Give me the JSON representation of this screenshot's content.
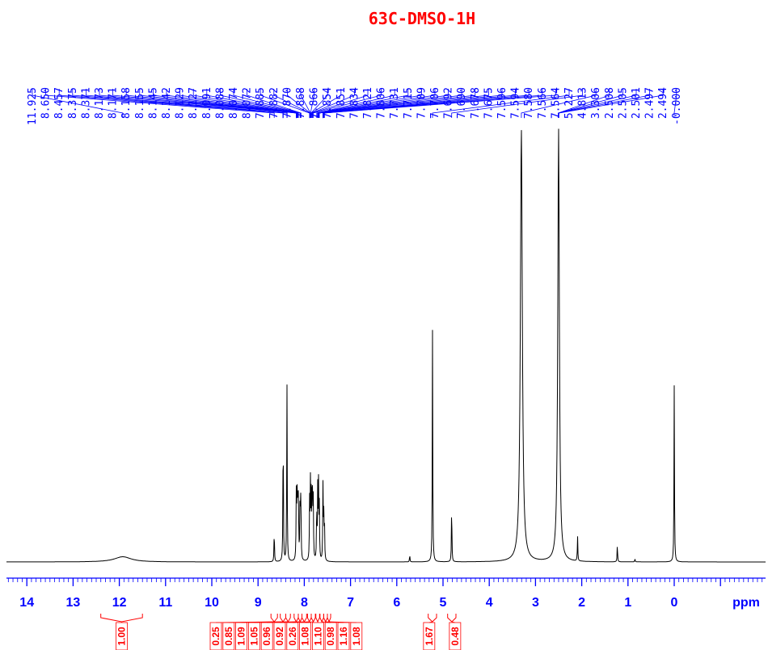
{
  "chart_data": {
    "type": "line",
    "title": "63C-DMSO-1H",
    "x_unit_label": "ppm",
    "x_axis": {
      "range": [
        14.5,
        -1.9
      ],
      "reversed": true,
      "major_ticks": [
        14,
        13,
        12,
        11,
        10,
        9,
        8,
        7,
        6,
        5,
        4,
        3,
        2,
        1,
        0
      ],
      "minor_step": 0.1
    },
    "peak_labels": [
      "11.925",
      "8.650",
      "8.457",
      "8.375",
      "8.371",
      "8.173",
      "8.171",
      "8.158",
      "8.155",
      "8.145",
      "8.142",
      "8.129",
      "8.127",
      "8.091",
      "8.088",
      "8.074",
      "8.072",
      "7.885",
      "7.882",
      "7.870",
      "7.868",
      "7.866",
      "7.854",
      "7.851",
      "7.834",
      "7.821",
      "7.806",
      "7.731",
      "7.715",
      "7.709",
      "7.706",
      "7.692",
      "7.690",
      "7.678",
      "7.675",
      "7.596",
      "7.594",
      "7.580",
      "7.566",
      "7.564",
      "5.227",
      "4.813",
      "3.306",
      "2.508",
      "2.505",
      "2.501",
      "2.497",
      "2.494",
      "-0.000"
    ],
    "peaks": [
      {
        "ppm": 11.925,
        "h": 0.012,
        "w": 0.22
      },
      {
        "ppm": 8.65,
        "h": 0.073
      },
      {
        "ppm": 8.457,
        "h": 0.325
      },
      {
        "ppm": 8.375,
        "h": 0.413
      },
      {
        "ppm": 8.173,
        "h": 0.145
      },
      {
        "ppm": 8.158,
        "h": 0.15
      },
      {
        "ppm": 8.142,
        "h": 0.15
      },
      {
        "ppm": 8.127,
        "h": 0.14
      },
      {
        "ppm": 8.091,
        "h": 0.155
      },
      {
        "ppm": 8.074,
        "h": 0.16
      },
      {
        "ppm": 7.885,
        "h": 0.13
      },
      {
        "ppm": 7.868,
        "h": 0.17
      },
      {
        "ppm": 7.851,
        "h": 0.14
      },
      {
        "ppm": 7.834,
        "h": 0.12
      },
      {
        "ppm": 7.821,
        "h": 0.14
      },
      {
        "ppm": 7.806,
        "h": 0.13
      },
      {
        "ppm": 7.731,
        "h": 0.125
      },
      {
        "ppm": 7.709,
        "h": 0.16
      },
      {
        "ppm": 7.692,
        "h": 0.165
      },
      {
        "ppm": 7.675,
        "h": 0.12
      },
      {
        "ppm": 7.596,
        "h": 0.17
      },
      {
        "ppm": 7.58,
        "h": 0.1
      },
      {
        "ppm": 7.564,
        "h": 0.09
      },
      {
        "ppm": 5.72,
        "h": 0.016
      },
      {
        "ppm": 5.227,
        "h": 0.533
      },
      {
        "ppm": 4.813,
        "h": 0.135
      },
      {
        "ppm": 3.306,
        "h": 0.995,
        "w": 0.025
      },
      {
        "ppm": 2.501,
        "h": 0.995,
        "w": 0.02
      },
      {
        "ppm": 2.09,
        "h": 0.057
      },
      {
        "ppm": 1.23,
        "h": 0.04
      },
      {
        "ppm": 0.85,
        "h": 0.007
      },
      {
        "ppm": 0.0,
        "h": 0.405
      }
    ],
    "integrals": [
      {
        "label": "1.00",
        "from": 12.4,
        "to": 11.5
      },
      {
        "label": "0.25",
        "from": 8.72,
        "to": 8.58
      },
      {
        "label": "0.85",
        "from": 8.52,
        "to": 8.4
      },
      {
        "label": "1.09",
        "from": 8.4,
        "to": 8.3
      },
      {
        "label": "1.05",
        "from": 8.22,
        "to": 8.13
      },
      {
        "label": "0.96",
        "from": 8.13,
        "to": 8.05
      },
      {
        "label": "0.92",
        "from": 8.05,
        "to": 7.95
      },
      {
        "label": "0.26",
        "from": 7.93,
        "to": 7.85
      },
      {
        "label": "1.08",
        "from": 7.85,
        "to": 7.76
      },
      {
        "label": "1.10",
        "from": 7.75,
        "to": 7.67
      },
      {
        "label": "0.98",
        "from": 7.66,
        "to": 7.58
      },
      {
        "label": "1.16",
        "from": 7.58,
        "to": 7.5
      },
      {
        "label": "1.08",
        "from": 7.5,
        "to": 7.43
      },
      {
        "label": "1.67",
        "from": 5.32,
        "to": 5.14
      },
      {
        "label": "0.48",
        "from": 4.9,
        "to": 4.72
      }
    ],
    "colors": {
      "title": "#ff0000",
      "peak_labels": "#0000ff",
      "axis": "#0000ff",
      "integrals": "#ff0000",
      "spectrum": "#000000"
    }
  }
}
